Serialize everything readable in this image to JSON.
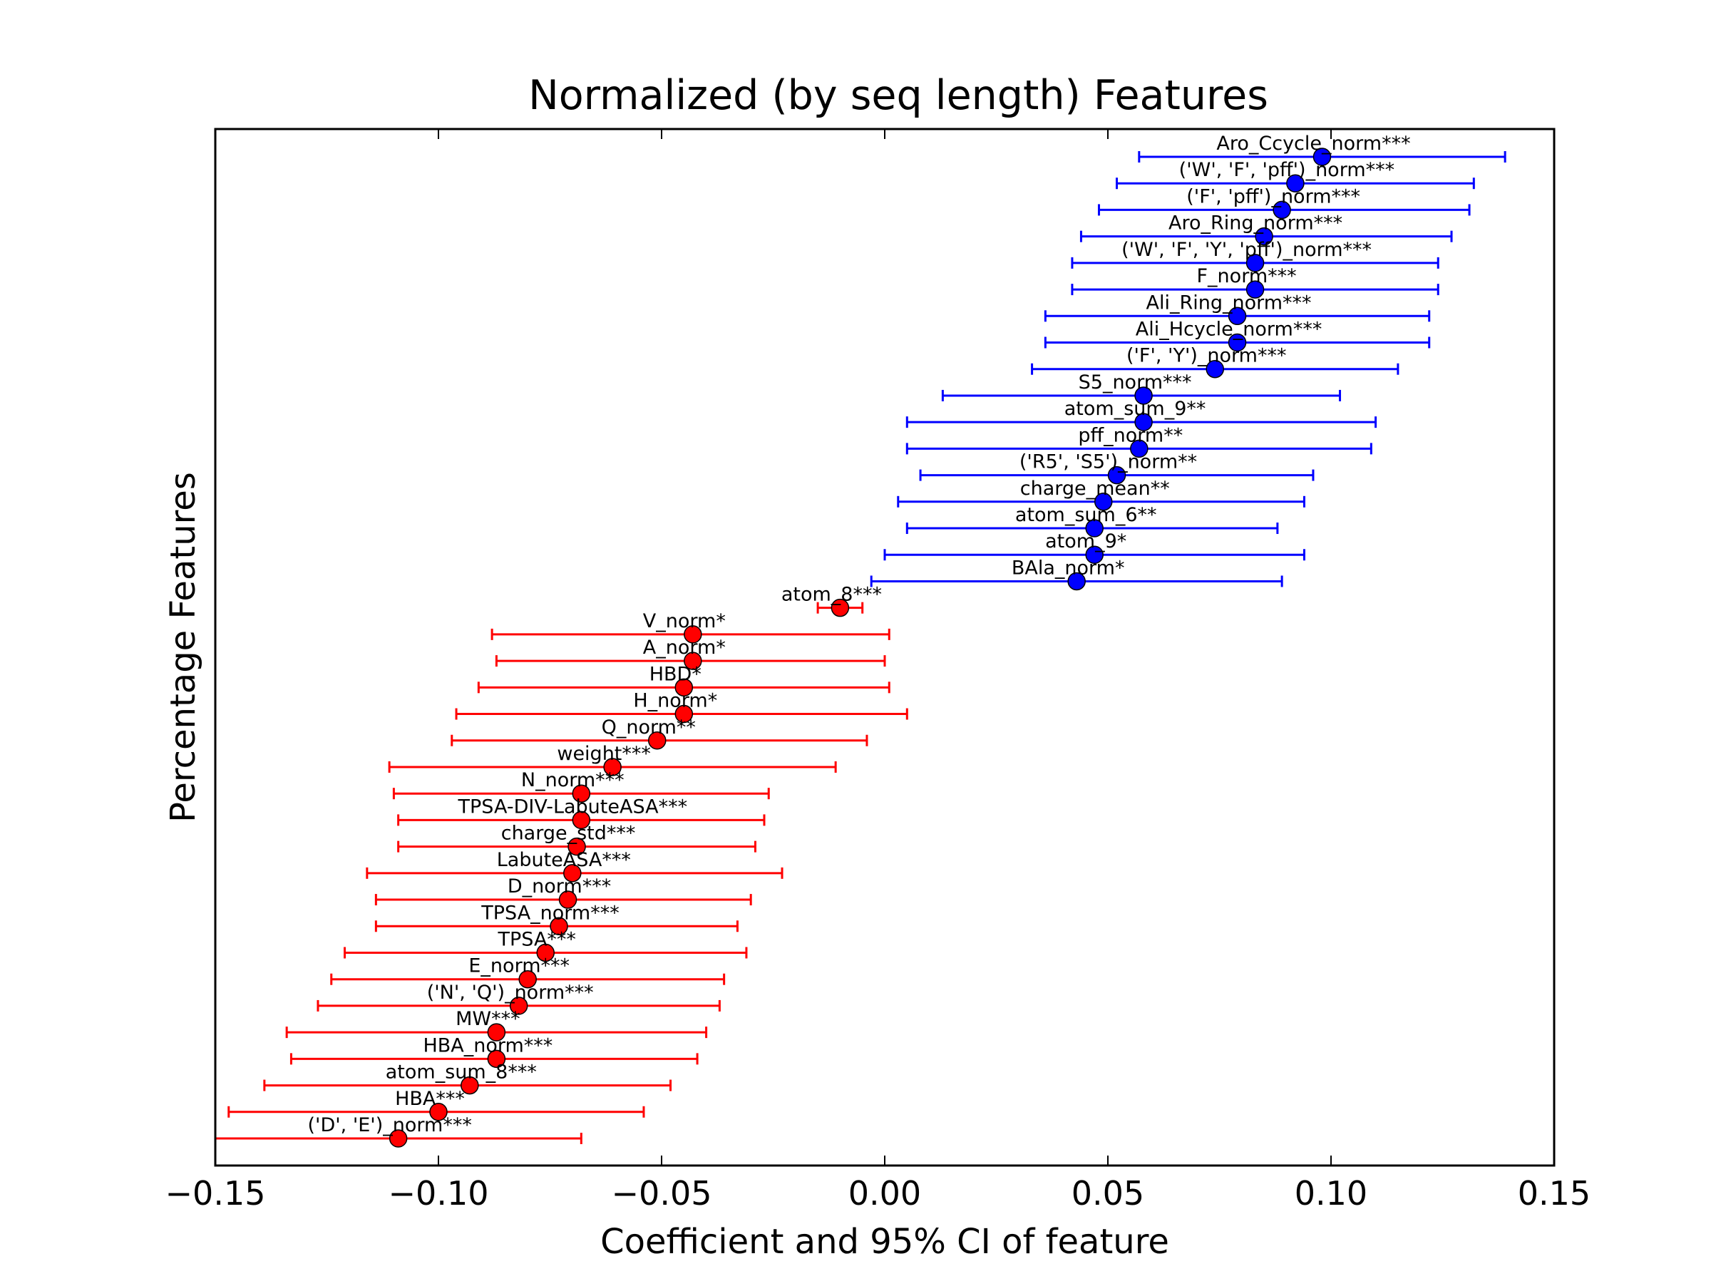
{
  "chart_data": {
    "type": "scatter",
    "title": "Normalized (by seq length) Features",
    "xlabel": "Coefficient and 95% CI of feature",
    "ylabel": "Percentage Features",
    "xlim": [
      -0.15,
      0.15
    ],
    "xticks": [
      -0.15,
      -0.1,
      -0.05,
      0.0,
      0.05,
      0.1,
      0.15
    ],
    "xtick_labels": [
      "−0.15",
      "−0.10",
      "−0.05",
      "0.00",
      "0.05",
      "0.10",
      "0.15"
    ],
    "grid": false,
    "colors": {
      "positive": "#0000ff",
      "negative": "#ff0000",
      "frame": "#000000"
    },
    "series": [
      {
        "name": "Aro_Ccycle_norm***",
        "value": 0.098,
        "ci": [
          0.057,
          0.139
        ]
      },
      {
        "name": "('W', 'F', 'pff')_norm***",
        "value": 0.092,
        "ci": [
          0.052,
          0.132
        ]
      },
      {
        "name": "('F', 'pff')_norm***",
        "value": 0.089,
        "ci": [
          0.048,
          0.131
        ]
      },
      {
        "name": "Aro_Ring_norm***",
        "value": 0.085,
        "ci": [
          0.044,
          0.127
        ]
      },
      {
        "name": "('W', 'F', 'Y', 'pff')_norm***",
        "value": 0.083,
        "ci": [
          0.042,
          0.124
        ]
      },
      {
        "name": "F_norm***",
        "value": 0.083,
        "ci": [
          0.042,
          0.124
        ]
      },
      {
        "name": "Ali_Ring_norm***",
        "value": 0.079,
        "ci": [
          0.036,
          0.122
        ]
      },
      {
        "name": "Ali_Hcycle_norm***",
        "value": 0.079,
        "ci": [
          0.036,
          0.122
        ]
      },
      {
        "name": "('F', 'Y')_norm***",
        "value": 0.074,
        "ci": [
          0.033,
          0.115
        ]
      },
      {
        "name": "S5_norm***",
        "value": 0.058,
        "ci": [
          0.013,
          0.102
        ]
      },
      {
        "name": "atom_sum_9**",
        "value": 0.058,
        "ci": [
          0.005,
          0.11
        ]
      },
      {
        "name": "pff_norm**",
        "value": 0.057,
        "ci": [
          0.005,
          0.109
        ]
      },
      {
        "name": "('R5', 'S5')_norm**",
        "value": 0.052,
        "ci": [
          0.008,
          0.096
        ]
      },
      {
        "name": "charge_mean**",
        "value": 0.049,
        "ci": [
          0.003,
          0.094
        ]
      },
      {
        "name": "atom_sum_6**",
        "value": 0.047,
        "ci": [
          0.005,
          0.088
        ]
      },
      {
        "name": "atom_9*",
        "value": 0.047,
        "ci": [
          0.0,
          0.094
        ]
      },
      {
        "name": "BAla_norm*",
        "value": 0.043,
        "ci": [
          -0.003,
          0.089
        ]
      },
      {
        "name": "atom_8***",
        "value": -0.01,
        "ci": [
          -0.015,
          -0.005
        ]
      },
      {
        "name": "V_norm*",
        "value": -0.043,
        "ci": [
          -0.088,
          0.001
        ]
      },
      {
        "name": "A_norm*",
        "value": -0.043,
        "ci": [
          -0.087,
          0.0
        ]
      },
      {
        "name": "HBD*",
        "value": -0.045,
        "ci": [
          -0.091,
          0.001
        ]
      },
      {
        "name": "H_norm*",
        "value": -0.045,
        "ci": [
          -0.096,
          0.005
        ]
      },
      {
        "name": "Q_norm**",
        "value": -0.051,
        "ci": [
          -0.097,
          -0.004
        ]
      },
      {
        "name": "weight***",
        "value": -0.061,
        "ci": [
          -0.111,
          -0.011
        ]
      },
      {
        "name": "N_norm***",
        "value": -0.068,
        "ci": [
          -0.11,
          -0.026
        ]
      },
      {
        "name": "TPSA-DIV-LabuteASA***",
        "value": -0.068,
        "ci": [
          -0.109,
          -0.027
        ]
      },
      {
        "name": "charge_std***",
        "value": -0.069,
        "ci": [
          -0.109,
          -0.029
        ]
      },
      {
        "name": "LabuteASA***",
        "value": -0.07,
        "ci": [
          -0.116,
          -0.023
        ]
      },
      {
        "name": "D_norm***",
        "value": -0.071,
        "ci": [
          -0.114,
          -0.03
        ]
      },
      {
        "name": "TPSA_norm***",
        "value": -0.073,
        "ci": [
          -0.114,
          -0.033
        ]
      },
      {
        "name": "TPSA***",
        "value": -0.076,
        "ci": [
          -0.121,
          -0.031
        ]
      },
      {
        "name": "E_norm***",
        "value": -0.08,
        "ci": [
          -0.124,
          -0.036
        ]
      },
      {
        "name": "('N', 'Q')_norm***",
        "value": -0.082,
        "ci": [
          -0.127,
          -0.037
        ]
      },
      {
        "name": "MW***",
        "value": -0.087,
        "ci": [
          -0.134,
          -0.04
        ]
      },
      {
        "name": "HBA_norm***",
        "value": -0.087,
        "ci": [
          -0.133,
          -0.042
        ]
      },
      {
        "name": "atom_sum_8***",
        "value": -0.093,
        "ci": [
          -0.139,
          -0.048
        ]
      },
      {
        "name": "HBA***",
        "value": -0.1,
        "ci": [
          -0.147,
          -0.054
        ]
      },
      {
        "name": "('D', 'E')_norm***",
        "value": -0.109,
        "ci": [
          -0.15,
          -0.068
        ]
      }
    ]
  }
}
